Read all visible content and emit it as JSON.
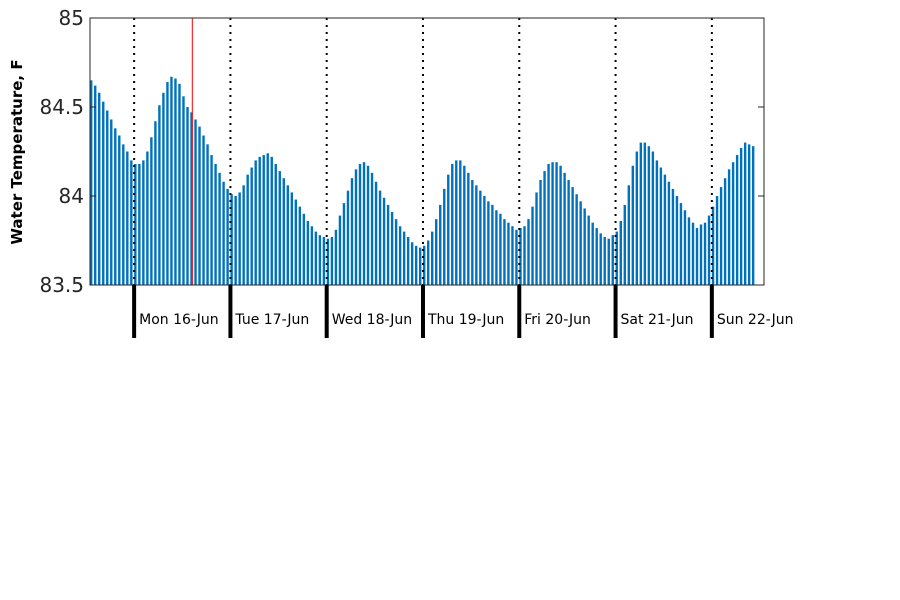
{
  "chart_data": {
    "type": "bar",
    "ylabel": "Water Temperature, F",
    "ylim": [
      83.5,
      85
    ],
    "yticks": [
      83.5,
      84,
      84.5,
      85
    ],
    "ytick_labels": [
      "83.5",
      "84",
      "84.5",
      "85"
    ],
    "x_range_hours": [
      0,
      168
    ],
    "bar_interval_hours": 1,
    "day_boundary_hours": [
      11,
      35,
      59,
      83,
      107,
      131,
      155
    ],
    "day_labels": [
      "Mon 16-Jun",
      "Tue 17-Jun",
      "Wed 18-Jun",
      "Thu 19-Jun",
      "Fri 20-Jun",
      "Sat 21-Jun",
      "Sun 22-Jun"
    ],
    "current_time_hour": 25.5,
    "grid": false,
    "colors": {
      "bars": "#0072BD",
      "current_time_line": "#FF0000",
      "axis": "#262626"
    },
    "values": [
      84.65,
      84.62,
      84.58,
      84.53,
      84.48,
      84.43,
      84.38,
      84.34,
      84.29,
      84.25,
      84.2,
      84.18,
      84.18,
      84.2,
      84.25,
      84.33,
      84.42,
      84.51,
      84.58,
      84.64,
      84.67,
      84.66,
      84.63,
      84.56,
      84.5,
      84.47,
      84.43,
      84.39,
      84.34,
      84.29,
      84.23,
      84.18,
      84.13,
      84.08,
      84.04,
      84.01,
      84.0,
      84.02,
      84.06,
      84.12,
      84.16,
      84.2,
      84.22,
      84.23,
      84.24,
      84.22,
      84.18,
      84.14,
      84.1,
      84.06,
      84.02,
      83.98,
      83.94,
      83.9,
      83.86,
      83.83,
      83.8,
      83.78,
      83.77,
      83.76,
      83.77,
      83.81,
      83.89,
      83.96,
      84.03,
      84.1,
      84.15,
      84.18,
      84.19,
      84.17,
      84.13,
      84.08,
      84.03,
      83.99,
      83.95,
      83.91,
      83.87,
      83.83,
      83.8,
      83.77,
      83.74,
      83.72,
      83.71,
      83.72,
      83.75,
      83.8,
      83.87,
      83.95,
      84.04,
      84.12,
      84.18,
      84.2,
      84.2,
      84.17,
      84.13,
      84.09,
      84.06,
      84.03,
      84.0,
      83.97,
      83.95,
      83.92,
      83.9,
      83.87,
      83.85,
      83.83,
      83.81,
      83.82,
      83.83,
      83.87,
      83.94,
      84.02,
      84.09,
      84.14,
      84.18,
      84.19,
      84.19,
      84.17,
      84.13,
      84.09,
      84.05,
      84.01,
      83.97,
      83.93,
      83.89,
      83.85,
      83.82,
      83.79,
      83.77,
      83.76,
      83.78,
      83.8,
      83.86,
      83.95,
      84.06,
      84.17,
      84.25,
      84.3,
      84.3,
      84.28,
      84.25,
      84.2,
      84.16,
      84.12,
      84.08,
      84.04,
      84.0,
      83.96,
      83.92,
      83.88,
      83.85,
      83.82,
      83.84,
      83.85,
      83.89,
      83.94,
      84.0,
      84.05,
      84.1,
      84.15,
      84.19,
      84.23,
      84.27,
      84.3,
      84.29,
      84.28
    ]
  }
}
